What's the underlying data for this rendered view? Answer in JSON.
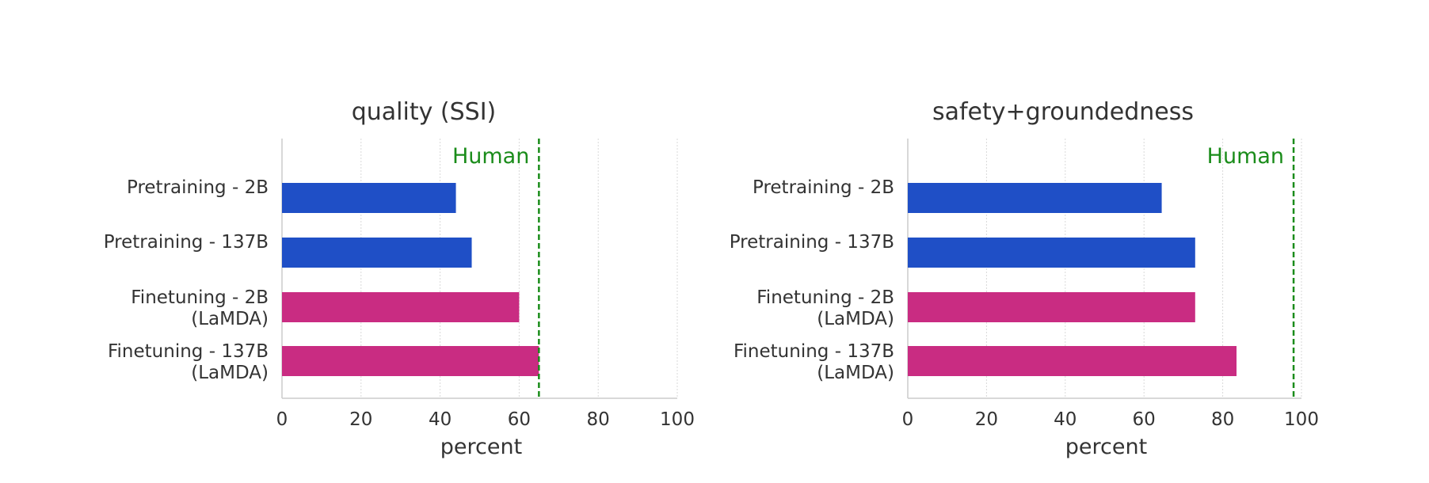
{
  "colors": {
    "pretraining": "#1f4fc6",
    "finetuning": "#c92c82",
    "human": "#1a8c1a",
    "axis": "#cccccc",
    "grid": "#d9d9d9",
    "text": "#333333"
  },
  "chart_data": [
    {
      "type": "bar",
      "orientation": "horizontal",
      "title": "quality (SSI)",
      "xlabel": "percent",
      "ylabel": "",
      "xlim": [
        0,
        100
      ],
      "xticks": [
        "0",
        "20",
        "40",
        "60",
        "80",
        "100"
      ],
      "grid": "vertical dotted",
      "categories": [
        {
          "line1": "Pretraining - 2B",
          "line2": ""
        },
        {
          "line1": "Pretraining - 137B",
          "line2": ""
        },
        {
          "line1": "Finetuning - 2B",
          "line2": "(LaMDA)"
        },
        {
          "line1": "Finetuning - 137B",
          "line2": "(LaMDA)"
        }
      ],
      "values": [
        44,
        48,
        60,
        65
      ],
      "groups": [
        "pretraining",
        "pretraining",
        "finetuning",
        "finetuning"
      ],
      "reference_line": {
        "label": "Human",
        "value": 65
      }
    },
    {
      "type": "bar",
      "orientation": "horizontal",
      "title": "safety+groundedness",
      "xlabel": "percent",
      "ylabel": "",
      "xlim": [
        0,
        100
      ],
      "xticks": [
        "0",
        "20",
        "40",
        "60",
        "80",
        "100"
      ],
      "grid": "vertical dotted",
      "categories": [
        {
          "line1": "Pretraining - 2B",
          "line2": ""
        },
        {
          "line1": "Pretraining - 137B",
          "line2": ""
        },
        {
          "line1": "Finetuning - 2B",
          "line2": "(LaMDA)"
        },
        {
          "line1": "Finetuning - 137B",
          "line2": "(LaMDA)"
        }
      ],
      "values": [
        64.5,
        73,
        73,
        83.5
      ],
      "groups": [
        "pretraining",
        "pretraining",
        "finetuning",
        "finetuning"
      ],
      "reference_line": {
        "label": "Human",
        "value": 98
      }
    }
  ]
}
